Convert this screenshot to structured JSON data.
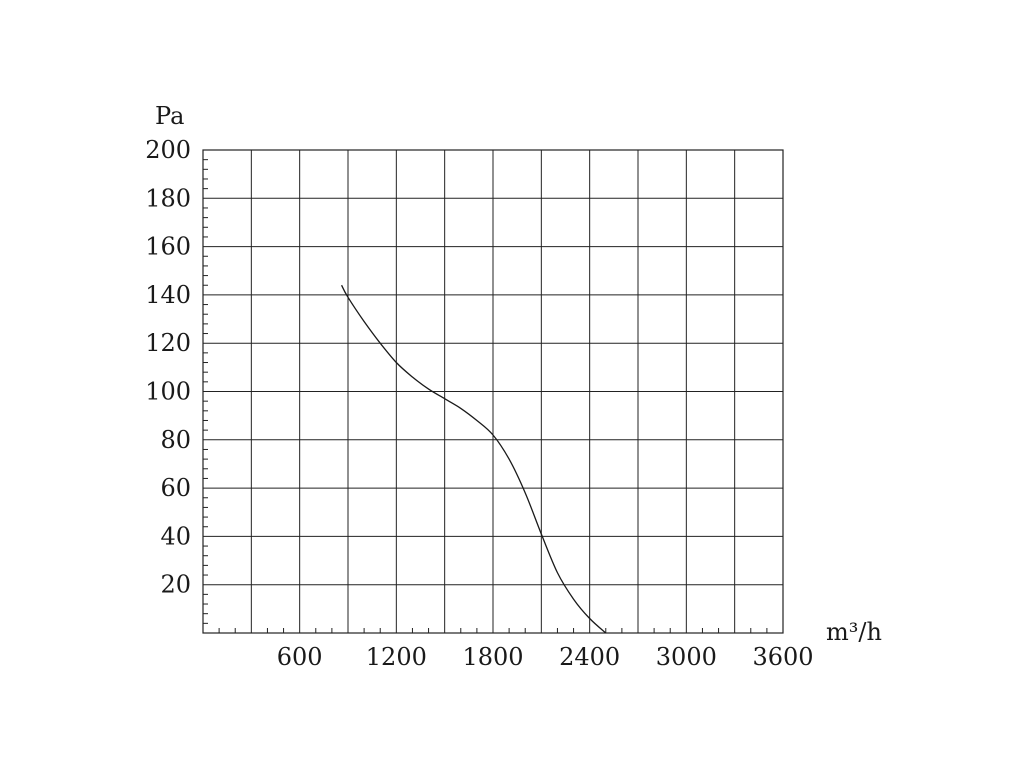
{
  "chart_data": {
    "type": "line",
    "title": "",
    "xlabel": "m³/h",
    "ylabel": "Pa",
    "xlim": [
      0,
      3600
    ],
    "ylim": [
      0,
      200
    ],
    "grid": true,
    "x_ticks": [
      600,
      1200,
      1800,
      2400,
      3000,
      3600
    ],
    "x_tick_labels": [
      "600",
      "1200",
      "1800",
      "2400",
      "3000",
      "3600"
    ],
    "y_ticks": [
      20,
      40,
      60,
      80,
      100,
      120,
      140,
      160,
      180,
      200
    ],
    "y_tick_labels": [
      "20",
      "40",
      "60",
      "80",
      "100",
      "120",
      "140",
      "160",
      "180",
      "200"
    ],
    "series": [
      {
        "x": [
          860,
          900,
          1000,
          1100,
          1200,
          1300,
          1400,
          1500,
          1600,
          1700,
          1800,
          1900,
          2000,
          2100,
          2200,
          2300,
          2400,
          2500
        ],
        "y": [
          144,
          139,
          129,
          120,
          112,
          106,
          101,
          97,
          93,
          88,
          82,
          72,
          58,
          41,
          25,
          14,
          6,
          0
        ],
        "color": "#1a1a1a"
      }
    ]
  }
}
